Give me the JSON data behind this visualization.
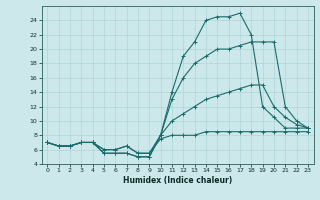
{
  "xlabel": "Humidex (Indice chaleur)",
  "xlim": [
    -0.5,
    23.5
  ],
  "ylim": [
    4,
    26
  ],
  "yticks": [
    4,
    6,
    8,
    10,
    12,
    14,
    16,
    18,
    20,
    22,
    24
  ],
  "xticks": [
    0,
    1,
    2,
    3,
    4,
    5,
    6,
    7,
    8,
    9,
    10,
    11,
    12,
    13,
    14,
    15,
    16,
    17,
    18,
    19,
    20,
    21,
    22,
    23
  ],
  "background_color": "#cde8ea",
  "line_color": "#1a6b6b",
  "grid_color": "#aed4d6",
  "series": [
    {
      "x": [
        0,
        1,
        2,
        3,
        4,
        5,
        6,
        7,
        8,
        9,
        10,
        11,
        12,
        13,
        14,
        15,
        16,
        17,
        18,
        19,
        20,
        21,
        22,
        23
      ],
      "y": [
        7,
        6.5,
        6.5,
        7,
        7,
        6,
        6,
        6.5,
        5.5,
        5.5,
        7.5,
        8,
        8,
        8,
        8.5,
        8.5,
        8.5,
        8.5,
        8.5,
        8.5,
        8.5,
        8.5,
        8.5,
        8.5
      ]
    },
    {
      "x": [
        0,
        1,
        2,
        3,
        4,
        5,
        6,
        7,
        8,
        9,
        10,
        11,
        12,
        13,
        14,
        15,
        16,
        17,
        18,
        19,
        20,
        21,
        22,
        23
      ],
      "y": [
        7,
        6.5,
        6.5,
        7,
        7,
        5.5,
        5.5,
        5.5,
        5,
        5,
        8,
        14,
        19,
        21,
        24,
        24.5,
        24.5,
        25,
        22,
        12,
        10.5,
        9,
        9,
        9
      ]
    },
    {
      "x": [
        0,
        1,
        2,
        3,
        4,
        5,
        6,
        7,
        8,
        9,
        10,
        11,
        12,
        13,
        14,
        15,
        16,
        17,
        18,
        19,
        20,
        21,
        22,
        23
      ],
      "y": [
        7,
        6.5,
        6.5,
        7,
        7,
        6,
        6,
        6.5,
        5.5,
        5.5,
        8,
        10,
        11,
        12,
        13,
        13.5,
        14,
        14.5,
        15,
        15,
        12,
        10.5,
        9.5,
        9
      ]
    },
    {
      "x": [
        0,
        1,
        2,
        3,
        4,
        5,
        6,
        7,
        8,
        9,
        10,
        11,
        12,
        13,
        14,
        15,
        16,
        17,
        18,
        19,
        20,
        21,
        22,
        23
      ],
      "y": [
        7,
        6.5,
        6.5,
        7,
        7,
        5.5,
        5.5,
        5.5,
        5,
        5,
        8,
        13,
        16,
        18,
        19,
        20,
        20,
        20.5,
        21,
        21,
        21,
        12,
        10,
        9
      ]
    }
  ]
}
